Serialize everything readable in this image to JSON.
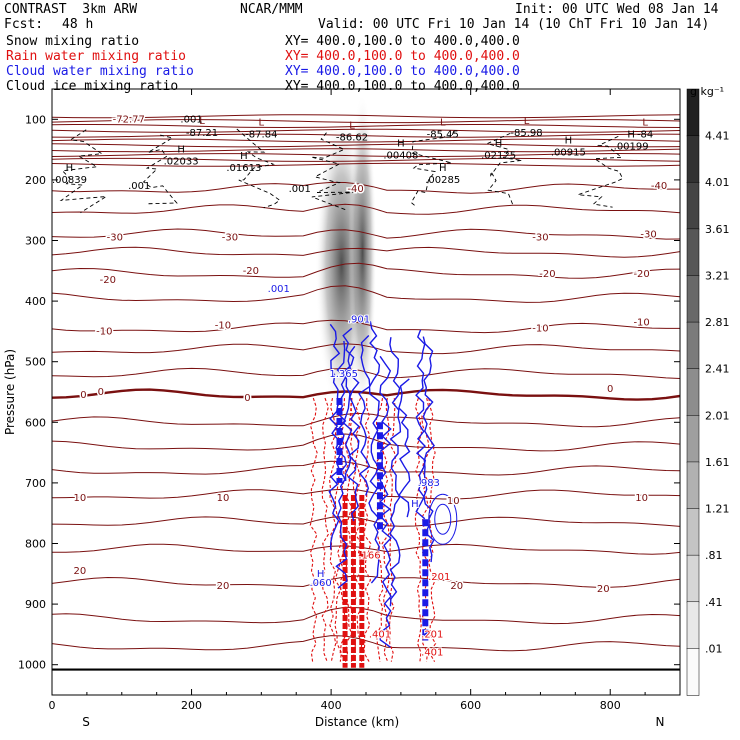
{
  "header": {
    "model": "CONTRAST  3km ARW",
    "org": "NCAR/MMM",
    "init": "Init: 00 UTC Wed 08 Jan 14",
    "fcst_label": "Fcst:",
    "fcst_value": "48 h",
    "valid": "Valid: 00 UTC Fri 10 Jan 14 (10 ChT Fri 10 Jan 14)",
    "fields": [
      {
        "name": "Snow mixing ratio",
        "xy": "XY= 400.0,100.0 to 400.0,400.0",
        "color": "#000000"
      },
      {
        "name": "Rain water mixing ratio",
        "xy": "XY= 400.0,100.0 to 400.0,400.0",
        "color": "#e01010"
      },
      {
        "name": "Cloud water mixing ratio",
        "xy": "XY= 400.0,100.0 to 400.0,400.0",
        "color": "#1a1ae6"
      },
      {
        "name": "Cloud ice mixing ratio",
        "xy": "XY= 400.0,100.0 to 400.0,400.0",
        "color": "#000000"
      }
    ]
  },
  "chart_data": {
    "type": "heatmap",
    "title": "Vertical cross-section",
    "xlabel": "Distance (km)",
    "ylabel": "Pressure (hPa)",
    "xlim": [
      0,
      900
    ],
    "ylim": [
      1050,
      50
    ],
    "x_ticks": [
      0,
      200,
      400,
      600,
      800
    ],
    "y_ticks": [
      100,
      200,
      300,
      400,
      500,
      600,
      700,
      800,
      900,
      1000
    ],
    "x_end_labels": {
      "left": "S",
      "right": "N"
    },
    "colorbar": {
      "unit": "g kg⁻¹",
      "ticks": [
        "4.41",
        "4.01",
        "3.61",
        "3.21",
        "2.81",
        "2.41",
        "2.01",
        "1.61",
        "1.21",
        ".81",
        ".41",
        ".01"
      ],
      "values": [
        4.41,
        4.01,
        3.61,
        3.21,
        2.81,
        2.41,
        2.01,
        1.61,
        1.21,
        0.81,
        0.41,
        0.01
      ]
    },
    "temperature_contours": {
      "color": "#7a1010",
      "levels": [
        -40,
        -30,
        -20,
        -10,
        0,
        10,
        20
      ],
      "pressure_at_level": {
        "-40": 215,
        "-30": 290,
        "-20": 355,
        "-10": 445,
        "0": 555,
        "10": 720,
        "20": 865
      },
      "labels": [
        {
          "x": 110,
          "p": 100,
          "text": "-72.77"
        },
        {
          "x": 435,
          "p": 215,
          "text": "-40"
        },
        {
          "x": 870,
          "p": 210,
          "text": "-40"
        },
        {
          "x": 90,
          "p": 295,
          "text": "-30"
        },
        {
          "x": 255,
          "p": 295,
          "text": "-30"
        },
        {
          "x": 700,
          "p": 295,
          "text": "-30"
        },
        {
          "x": 855,
          "p": 290,
          "text": "-30"
        },
        {
          "x": 80,
          "p": 365,
          "text": "-20"
        },
        {
          "x": 285,
          "p": 350,
          "text": "-20"
        },
        {
          "x": 710,
          "p": 355,
          "text": "-20"
        },
        {
          "x": 845,
          "p": 355,
          "text": "-20"
        },
        {
          "x": 75,
          "p": 450,
          "text": "-10"
        },
        {
          "x": 245,
          "p": 440,
          "text": "-10"
        },
        {
          "x": 700,
          "p": 445,
          "text": "-10"
        },
        {
          "x": 845,
          "p": 435,
          "text": "-10"
        },
        {
          "x": 45,
          "p": 555,
          "text": "0"
        },
        {
          "x": 70,
          "p": 550,
          "text": "0"
        },
        {
          "x": 280,
          "p": 560,
          "text": "0"
        },
        {
          "x": 800,
          "p": 545,
          "text": "0"
        },
        {
          "x": 40,
          "p": 725,
          "text": "10"
        },
        {
          "x": 245,
          "p": 725,
          "text": "10"
        },
        {
          "x": 575,
          "p": 730,
          "text": "10"
        },
        {
          "x": 845,
          "p": 725,
          "text": "10"
        },
        {
          "x": 40,
          "p": 845,
          "text": "20"
        },
        {
          "x": 245,
          "p": 870,
          "text": "20"
        },
        {
          "x": 580,
          "p": 870,
          "text": "20"
        },
        {
          "x": 790,
          "p": 875,
          "text": "20"
        }
      ],
      "minima": [
        {
          "x": 215,
          "p": 118,
          "label": "L",
          "value": "-87.21"
        },
        {
          "x": 300,
          "p": 120,
          "label": "L",
          "value": "-87.84"
        },
        {
          "x": 430,
          "p": 125,
          "label": "L",
          "value": "-86.62"
        },
        {
          "x": 560,
          "p": 120,
          "label": "L",
          "value": "-85.45"
        },
        {
          "x": 680,
          "p": 118,
          "label": "L",
          "value": "-85.98"
        },
        {
          "x": 850,
          "p": 120,
          "label": "L",
          "value": "-84"
        }
      ]
    },
    "ice_maxima": [
      {
        "x": 25,
        "p": 195,
        "label": "H",
        "value": ".00839"
      },
      {
        "x": 185,
        "p": 165,
        "label": "H",
        "value": ".02033"
      },
      {
        "x": 275,
        "p": 175,
        "label": "H",
        "value": ".01613"
      },
      {
        "x": 500,
        "p": 155,
        "label": "H",
        "value": ".00408"
      },
      {
        "x": 560,
        "p": 195,
        "label": "H",
        "value": ".00285"
      },
      {
        "x": 640,
        "p": 155,
        "label": "H",
        "value": ".02125"
      },
      {
        "x": 740,
        "p": 150,
        "label": "H",
        "value": ".00915"
      },
      {
        "x": 830,
        "p": 140,
        "label": "H",
        "value": ".00199"
      }
    ],
    "ice_labels": [
      {
        "x": 125,
        "p": 215,
        "text": ".001"
      },
      {
        "x": 200,
        "p": 105,
        "text": ".001"
      },
      {
        "x": 355,
        "p": 220,
        "text": ".001"
      }
    ],
    "cloud_water_labels": [
      {
        "x": 325,
        "p": 385,
        "text": ".001"
      },
      {
        "x": 440,
        "p": 435,
        "text": ".901"
      },
      {
        "x": 418,
        "p": 525,
        "text": "1.365"
      },
      {
        "x": 540,
        "p": 705,
        "text": ".983"
      },
      {
        "x": 385,
        "p": 855,
        "text": "H"
      },
      {
        "x": 385,
        "p": 870,
        "text": ".060"
      },
      {
        "x": 520,
        "p": 740,
        "text": "H"
      }
    ],
    "rain_labels": [
      {
        "x": 455,
        "p": 825,
        "text": ".166"
      },
      {
        "x": 555,
        "p": 860,
        "text": ".201"
      },
      {
        "x": 470,
        "p": 955,
        "text": ".401"
      },
      {
        "x": 545,
        "p": 955,
        "text": ".201"
      },
      {
        "x": 545,
        "p": 985,
        "text": ".401"
      }
    ]
  }
}
